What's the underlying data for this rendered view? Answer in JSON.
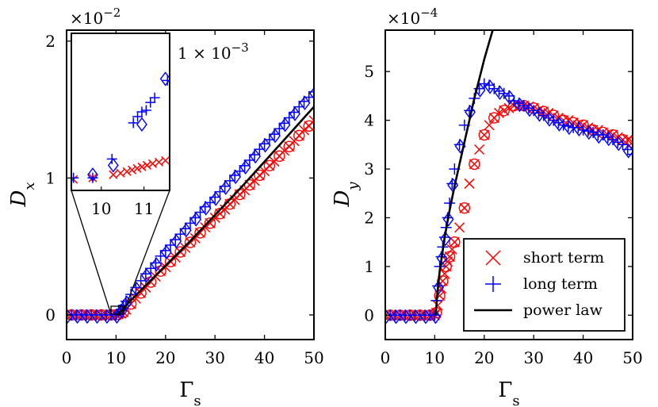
{
  "chart_data": [
    {
      "id": "left",
      "type": "scatter",
      "xlabel": "Γ",
      "xlabel_sub": "s",
      "ylabel": "D",
      "ylabel_sub": "x",
      "scale_factor": "×10",
      "scale_exponent": "−2",
      "xlim": [
        0,
        50
      ],
      "ylim": [
        -0.18,
        2.08
      ],
      "xticks": [
        "0",
        "10",
        "20",
        "30",
        "40",
        "50"
      ],
      "yticks": [
        "0",
        "1",
        "2"
      ],
      "series": [
        {
          "name": "short term",
          "marker": "x",
          "color": "#ff0000",
          "x": [
            0,
            1,
            2,
            3,
            4,
            5,
            6,
            7,
            8,
            9,
            10,
            10.5,
            11,
            11.5,
            12,
            13,
            14,
            15,
            16,
            17,
            18,
            19,
            20,
            21,
            22,
            23,
            24,
            25,
            26,
            27,
            28,
            29,
            30,
            31,
            32,
            33,
            34,
            35,
            36,
            37,
            38,
            39,
            40,
            41,
            42,
            43,
            44,
            45,
            46,
            47,
            48,
            49,
            50
          ],
          "y": [
            0,
            0,
            0,
            0,
            0,
            0,
            0,
            0,
            0,
            0,
            0,
            0.005,
            0.01,
            0.02,
            0.04,
            0.08,
            0.12,
            0.16,
            0.2,
            0.24,
            0.28,
            0.32,
            0.35,
            0.39,
            0.42,
            0.46,
            0.49,
            0.53,
            0.56,
            0.6,
            0.64,
            0.67,
            0.71,
            0.74,
            0.77,
            0.81,
            0.84,
            0.88,
            0.91,
            0.95,
            0.98,
            1.02,
            1.05,
            1.09,
            1.12,
            1.16,
            1.2,
            1.23,
            1.27,
            1.31,
            1.35,
            1.38,
            1.42
          ]
        },
        {
          "name": "long term",
          "marker": "+",
          "color": "#0000ff",
          "x": [
            0,
            1,
            2,
            3,
            4,
            5,
            6,
            7,
            8,
            9,
            10,
            10.5,
            11,
            11.5,
            12,
            13,
            14,
            15,
            16,
            17,
            18,
            19,
            20,
            21,
            22,
            23,
            24,
            25,
            26,
            27,
            28,
            29,
            30,
            31,
            32,
            33,
            34,
            35,
            36,
            37,
            38,
            39,
            40,
            41,
            42,
            43,
            44,
            45,
            46,
            47,
            48,
            49,
            50
          ],
          "y": [
            0,
            0,
            0,
            0,
            0,
            0,
            0,
            0,
            0,
            0,
            0,
            0.02,
            0.04,
            0.07,
            0.1,
            0.15,
            0.2,
            0.25,
            0.3,
            0.34,
            0.38,
            0.43,
            0.47,
            0.51,
            0.55,
            0.59,
            0.63,
            0.67,
            0.71,
            0.75,
            0.79,
            0.82,
            0.86,
            0.9,
            0.94,
            0.98,
            1.02,
            1.05,
            1.09,
            1.13,
            1.17,
            1.21,
            1.25,
            1.28,
            1.32,
            1.36,
            1.4,
            1.44,
            1.48,
            1.52,
            1.56,
            1.59,
            1.63
          ]
        },
        {
          "name": "power law",
          "marker": "line",
          "color": "#000000",
          "x": [
            10.2,
            12,
            15,
            20,
            25,
            30,
            35,
            40,
            45,
            50
          ],
          "y": [
            0,
            0.07,
            0.18,
            0.36,
            0.54,
            0.73,
            0.92,
            1.12,
            1.32,
            1.52
          ]
        }
      ],
      "inset": {
        "scale_factor": "×10",
        "scale_exponent": "−2",
        "label": "1 × 10",
        "label_exponent": "−3",
        "xlim": [
          9.3,
          11.6
        ],
        "ylim": [
          0.92,
          1.02
        ],
        "xticks": [
          "10",
          "11"
        ],
        "points_short": [
          [
            9.35,
            0.927
          ],
          [
            9.8,
            0.928
          ],
          [
            10.28,
            0.93
          ],
          [
            10.45,
            0.931
          ],
          [
            10.6,
            0.932
          ],
          [
            10.72,
            0.933
          ],
          [
            10.84,
            0.934
          ],
          [
            10.95,
            0.935
          ],
          [
            11.07,
            0.936
          ],
          [
            11.2,
            0.937
          ],
          [
            11.35,
            0.938
          ],
          [
            11.5,
            0.939
          ]
        ],
        "points_long": [
          [
            9.35,
            0.928
          ],
          [
            9.8,
            0.928
          ],
          [
            10.25,
            0.94
          ],
          [
            10.75,
            0.963
          ],
          [
            10.85,
            0.967
          ],
          [
            10.95,
            0.97
          ],
          [
            11.05,
            0.971
          ],
          [
            11.15,
            0.976
          ],
          [
            11.25,
            0.979
          ],
          [
            11.55,
            0.99
          ]
        ],
        "points_long_diamond": [
          [
            9.8,
            0.93
          ],
          [
            10.28,
            0.936
          ],
          [
            10.95,
            0.962
          ],
          [
            11.5,
            0.991
          ]
        ]
      }
    },
    {
      "id": "right",
      "type": "scatter",
      "xlabel": "Γ",
      "xlabel_sub": "s",
      "ylabel": "D",
      "ylabel_sub": "y",
      "scale_factor": "×10",
      "scale_exponent": "−4",
      "xlim": [
        0,
        50
      ],
      "ylim": [
        -0.5,
        5.85
      ],
      "xticks": [
        "0",
        "10",
        "20",
        "30",
        "40",
        "50"
      ],
      "yticks": [
        "0",
        "1",
        "2",
        "3",
        "4",
        "5"
      ],
      "series": [
        {
          "name": "short term",
          "marker": "x",
          "color": "#ff0000",
          "x": [
            0,
            1,
            2,
            3,
            4,
            5,
            6,
            7,
            8,
            9,
            10,
            10.3,
            10.6,
            11,
            11.3,
            11.6,
            12,
            12.3,
            12.6,
            13,
            13.5,
            14,
            15,
            16,
            17,
            18,
            19,
            20,
            21,
            22,
            23,
            24,
            25,
            26,
            27,
            28,
            29,
            30,
            31,
            32,
            33,
            34,
            35,
            36,
            37,
            38,
            39,
            40,
            41,
            42,
            43,
            44,
            45,
            46,
            47,
            48,
            49,
            50
          ],
          "y": [
            0,
            0,
            0,
            0,
            0,
            0,
            0,
            0,
            0,
            0,
            0,
            0.05,
            0.2,
            0.4,
            0.55,
            0.7,
            0.85,
            1.0,
            1.1,
            1.2,
            1.35,
            1.5,
            1.8,
            2.2,
            2.7,
            3.1,
            3.4,
            3.7,
            3.9,
            4.05,
            4.15,
            4.2,
            4.25,
            4.3,
            4.3,
            4.3,
            4.28,
            4.25,
            4.2,
            4.18,
            4.15,
            4.1,
            4.05,
            4.0,
            4.0,
            3.95,
            3.9,
            3.9,
            3.85,
            3.8,
            3.8,
            3.75,
            3.7,
            3.7,
            3.65,
            3.6,
            3.6,
            3.55
          ]
        },
        {
          "name": "long term",
          "marker": "+",
          "color": "#0000ff",
          "x": [
            0,
            1,
            2,
            3,
            4,
            5,
            6,
            7,
            8,
            9,
            10,
            10.3,
            10.6,
            11,
            11.3,
            11.6,
            12,
            12.3,
            12.6,
            13,
            13.5,
            14,
            15,
            16,
            17,
            18,
            19,
            20,
            21,
            22,
            23,
            24,
            25,
            26,
            27,
            28,
            29,
            30,
            31,
            32,
            33,
            34,
            35,
            36,
            37,
            38,
            39,
            40,
            41,
            42,
            43,
            44,
            45,
            46,
            47,
            48,
            49,
            50
          ],
          "y": [
            0,
            0,
            0,
            0,
            0,
            0,
            0,
            0,
            0,
            0,
            0,
            0.3,
            0.6,
            1.0,
            1.2,
            1.4,
            1.6,
            1.8,
            2.0,
            2.3,
            2.7,
            3.0,
            3.5,
            3.9,
            4.2,
            4.45,
            4.65,
            4.75,
            4.72,
            4.65,
            4.6,
            4.55,
            4.5,
            4.4,
            4.35,
            4.3,
            4.25,
            4.2,
            4.15,
            4.1,
            4.05,
            4.0,
            3.95,
            3.9,
            3.88,
            3.85,
            3.85,
            3.8,
            3.78,
            3.75,
            3.7,
            3.7,
            3.65,
            3.6,
            3.55,
            3.5,
            3.4,
            3.3
          ]
        },
        {
          "name": "power law",
          "marker": "line",
          "color": "#000000",
          "x": [
            10.2,
            10.5,
            11,
            12,
            13,
            14,
            15,
            16,
            17,
            18,
            19,
            20,
            21,
            22
          ],
          "y": [
            0,
            0.4,
            0.9,
            1.6,
            2.15,
            2.65,
            3.1,
            3.55,
            4.0,
            4.45,
            4.85,
            5.25,
            5.6,
            5.95
          ]
        }
      ],
      "legend": {
        "placement": "lower-right",
        "entries": [
          {
            "label": "short term",
            "marker": "x",
            "color": "#ff0000"
          },
          {
            "label": "long term",
            "marker": "+",
            "color": "#0000ff"
          },
          {
            "label": "power law",
            "marker": "line",
            "color": "#000000"
          }
        ]
      }
    }
  ]
}
